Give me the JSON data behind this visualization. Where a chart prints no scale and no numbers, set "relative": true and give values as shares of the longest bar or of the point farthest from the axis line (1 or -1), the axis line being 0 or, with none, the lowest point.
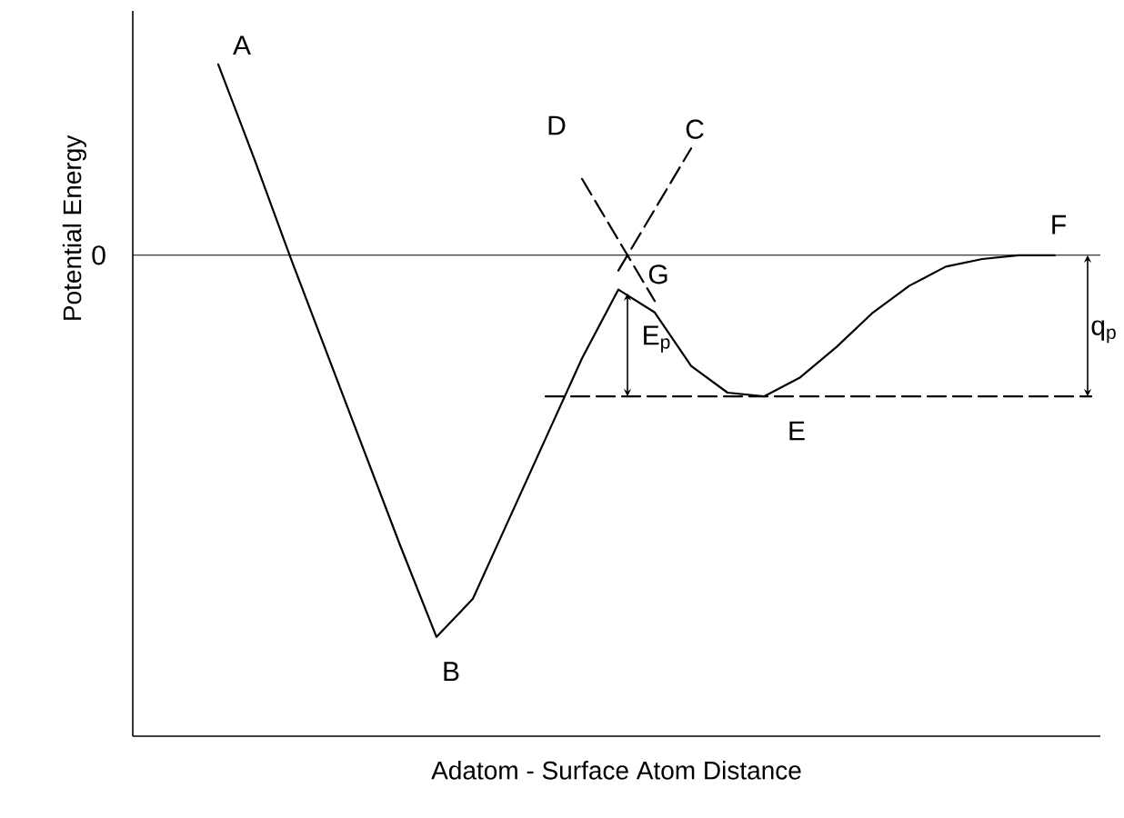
{
  "chart_data": {
    "type": "line",
    "relative": true,
    "xlabel": "Adatom - Surface Atom Distance",
    "ylabel": "Potential Energy",
    "categories": [
      null,
      null,
      null,
      null,
      null,
      null,
      null,
      null,
      null,
      null,
      null,
      null,
      null,
      null,
      null,
      null,
      null,
      null,
      null,
      null,
      null,
      null,
      null,
      null,
      null
    ],
    "series": [
      {
        "color": "#000000",
        "line_style": "solid",
        "values": [
          0.5,
          0.25,
          -0.01,
          -0.26,
          -0.51,
          -0.76,
          -1,
          -0.9,
          -0.69,
          -0.48,
          -0.27,
          -0.09,
          -0.15,
          -0.29,
          -0.36,
          -0.37,
          -0.32,
          -0.24,
          -0.15,
          -0.08,
          -0.03,
          -0.01,
          0,
          0,
          null
        ]
      },
      {
        "color": "#000000",
        "line_style": "dashed",
        "values": [
          null,
          null,
          null,
          null,
          null,
          null,
          null,
          null,
          null,
          null,
          0.2,
          0.04,
          -0.12,
          null,
          null,
          null,
          null,
          null,
          null,
          null,
          null,
          null,
          null,
          null,
          null
        ]
      },
      {
        "color": "#000000",
        "line_style": "dashed",
        "values": [
          null,
          null,
          null,
          null,
          null,
          null,
          null,
          null,
          null,
          null,
          null,
          -0.04,
          0.12,
          0.28,
          null,
          null,
          null,
          null,
          null,
          null,
          null,
          null,
          null,
          null,
          null
        ]
      },
      {
        "color": "#000000",
        "line_style": "dashed",
        "values": [
          null,
          null,
          null,
          null,
          null,
          null,
          null,
          null,
          null,
          -0.37,
          -0.37,
          -0.37,
          -0.37,
          -0.37,
          -0.37,
          -0.37,
          -0.37,
          -0.37,
          -0.37,
          -0.37,
          -0.37,
          -0.37,
          -0.37,
          -0.37,
          -0.37
        ]
      }
    ],
    "ref_lines": [
      {
        "axis": "y",
        "value": 0,
        "color": "#000000",
        "label": "0"
      }
    ],
    "annotations": [
      "A",
      "B",
      "C",
      "D",
      "E",
      "F",
      "G",
      "E$_{p}$",
      "q$_{p}$"
    ]
  }
}
